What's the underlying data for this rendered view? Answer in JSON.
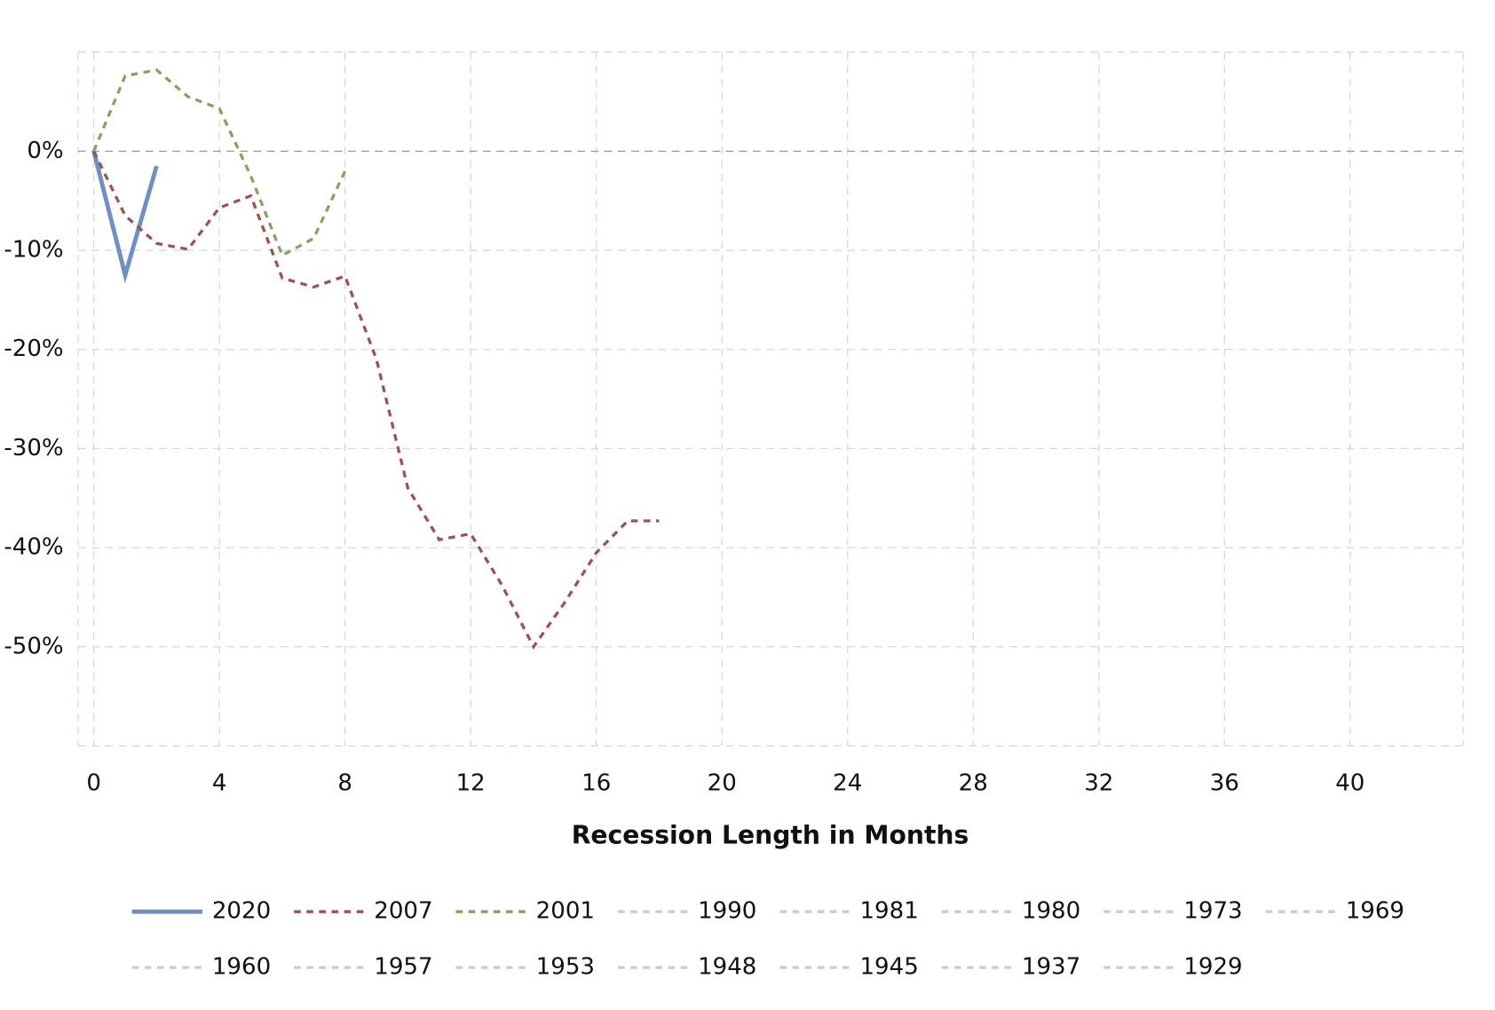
{
  "chart_data": {
    "type": "line",
    "x_label": "Recession Length in Months",
    "x": [
      0,
      1,
      2,
      3,
      4,
      5,
      6,
      7,
      8,
      9,
      10,
      11,
      12,
      13,
      14,
      15,
      16,
      17,
      18
    ],
    "xlim": [
      -0.5,
      43.6
    ],
    "xticks": [
      0,
      4,
      8,
      12,
      16,
      20,
      24,
      28,
      32,
      36,
      40
    ],
    "ylim": [
      -60,
      10
    ],
    "yticks": [
      {
        "value": 0,
        "label": "0%"
      },
      {
        "value": -10,
        "label": "-10%"
      },
      {
        "value": -20,
        "label": "-20%"
      },
      {
        "value": -30,
        "label": "-30%"
      },
      {
        "value": -40,
        "label": "-40%"
      },
      {
        "value": -50,
        "label": "-50%"
      }
    ],
    "grid": true,
    "series": [
      {
        "name": "2020",
        "color": "#6f8fc5",
        "dashed": false,
        "visible": true,
        "values": [
          0,
          -12.5,
          -1.5,
          null,
          null,
          null,
          null,
          null,
          null,
          null,
          null,
          null,
          null,
          null,
          null,
          null,
          null,
          null,
          null
        ]
      },
      {
        "name": "2007",
        "color": "#a0504f",
        "dashed": true,
        "visible": true,
        "values": [
          0,
          -6.5,
          -9.3,
          -9.9,
          -5.7,
          -4.5,
          -12.8,
          -13.7,
          -12.6,
          -21,
          -34,
          -39.2,
          -38.6,
          -43.8,
          -50,
          -45.5,
          -40.5,
          -37.3,
          -37.3
        ]
      },
      {
        "name": "2001",
        "color": "#8f9d5f",
        "dashed": true,
        "visible": true,
        "values": [
          0,
          7.6,
          8.2,
          5.5,
          4.3,
          -2.5,
          -10.5,
          -8.8,
          -2,
          null,
          null,
          null,
          null,
          null,
          null,
          null,
          null,
          null,
          null
        ]
      },
      {
        "name": "1990",
        "color": "#cccccc",
        "dashed": true,
        "visible": false
      },
      {
        "name": "1981",
        "color": "#cccccc",
        "dashed": true,
        "visible": false
      },
      {
        "name": "1980",
        "color": "#cccccc",
        "dashed": true,
        "visible": false
      },
      {
        "name": "1973",
        "color": "#cccccc",
        "dashed": true,
        "visible": false
      },
      {
        "name": "1969",
        "color": "#cccccc",
        "dashed": true,
        "visible": false
      },
      {
        "name": "1960",
        "color": "#cccccc",
        "dashed": true,
        "visible": false
      },
      {
        "name": "1957",
        "color": "#cccccc",
        "dashed": true,
        "visible": false
      },
      {
        "name": "1953",
        "color": "#cccccc",
        "dashed": true,
        "visible": false
      },
      {
        "name": "1948",
        "color": "#cccccc",
        "dashed": true,
        "visible": false
      },
      {
        "name": "1945",
        "color": "#cccccc",
        "dashed": true,
        "visible": false
      },
      {
        "name": "1937",
        "color": "#cccccc",
        "dashed": true,
        "visible": false
      },
      {
        "name": "1929",
        "color": "#cccccc",
        "dashed": true,
        "visible": false
      }
    ]
  }
}
